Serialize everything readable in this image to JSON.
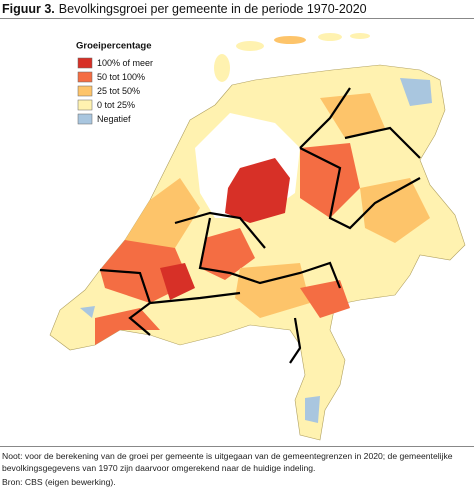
{
  "header": {
    "label": "Figuur 3.",
    "title": "Bevolkingsgroei per gemeente in de periode 1970-2020"
  },
  "legend": {
    "title": "Groeipercentage",
    "items": [
      {
        "label": "100% of meer",
        "color": "#d73027"
      },
      {
        "label": "50 tot 100%",
        "color": "#f46d43"
      },
      {
        "label": "25 tot 50%",
        "color": "#fdc46a"
      },
      {
        "label": "0 tot 25%",
        "color": "#fff2b0"
      },
      {
        "label": "Negatief",
        "color": "#a9c6df"
      }
    ]
  },
  "footer": {
    "note": "Noot: voor de berekening van de groei per gemeente is uitgegaan van de gemeentegrenzen in 2020; de gemeentelijke bevolkingsgegevens van 1970 zijn daarvoor omgerekend naar de huidige indeling.",
    "source": "Bron: CBS (eigen bewerking)."
  }
}
